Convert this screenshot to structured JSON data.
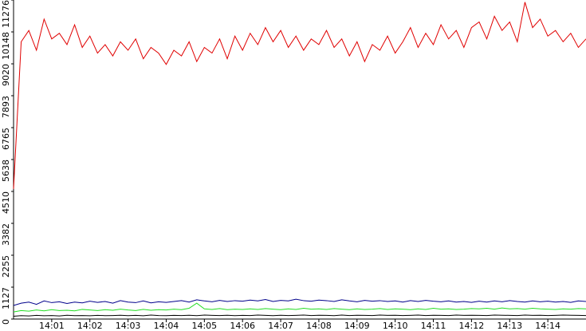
{
  "chart_data": {
    "type": "line",
    "x": [
      0,
      0.2,
      0.4,
      0.6,
      0.8,
      1,
      1.2,
      1.4,
      1.6,
      1.8,
      2,
      2.2,
      2.4,
      2.6,
      2.8,
      3,
      3.2,
      3.4,
      3.6,
      3.8,
      4,
      4.2,
      4.4,
      4.6,
      4.8,
      5,
      5.2,
      5.4,
      5.6,
      5.8,
      6,
      6.2,
      6.4,
      6.6,
      6.8,
      7,
      7.2,
      7.4,
      7.6,
      7.8,
      8,
      8.2,
      8.4,
      8.6,
      8.8,
      9,
      9.2,
      9.4,
      9.6,
      9.8,
      10,
      10.2,
      10.4,
      10.6,
      10.8,
      11,
      11.2,
      11.4,
      11.6,
      11.8,
      12,
      12.2,
      12.4,
      12.6,
      12.8,
      13,
      13.2,
      13.4,
      13.6,
      13.8,
      14,
      14.2,
      14.4,
      14.6,
      14.8,
      15
    ],
    "series": [
      {
        "color": "#e00000",
        "values": [
          4600,
          9800,
          10200,
          9500,
          10600,
          9900,
          10100,
          9700,
          10400,
          9600,
          10000,
          9400,
          9700,
          9300,
          9800,
          9500,
          9900,
          9200,
          9600,
          9400,
          9000,
          9500,
          9300,
          9800,
          9100,
          9600,
          9400,
          9900,
          9200,
          10000,
          9500,
          10100,
          9700,
          10300,
          9800,
          10200,
          9600,
          10000,
          9500,
          9900,
          9700,
          10200,
          9600,
          9900,
          9300,
          9800,
          9100,
          9700,
          9500,
          10000,
          9400,
          9800,
          10300,
          9600,
          10100,
          9700,
          10400,
          9900,
          10200,
          9600,
          10300,
          10500,
          9900,
          10700,
          10200,
          10500,
          9800,
          11200,
          10300,
          10600,
          10000,
          10200,
          9800,
          10100,
          9600,
          9900
        ]
      },
      {
        "color": "#00008b",
        "values": [
          480,
          560,
          600,
          520,
          640,
          580,
          610,
          550,
          600,
          570,
          630,
          590,
          620,
          560,
          650,
          600,
          580,
          640,
          570,
          610,
          590,
          620,
          650,
          600,
          680,
          640,
          610,
          660,
          620,
          650,
          630,
          670,
          640,
          690,
          620,
          660,
          640,
          700,
          650,
          630,
          670,
          650,
          620,
          680,
          640,
          610,
          660,
          630,
          650,
          620,
          640,
          600,
          650,
          620,
          660,
          630,
          610,
          640,
          600,
          620,
          590,
          630,
          600,
          640,
          610,
          650,
          620,
          600,
          640,
          610,
          630,
          600,
          620,
          590,
          640,
          620
        ]
      },
      {
        "color": "#22dd22",
        "values": [
          250,
          300,
          280,
          320,
          290,
          330,
          300,
          310,
          290,
          340,
          320,
          300,
          330,
          310,
          350,
          320,
          300,
          340,
          310,
          330,
          320,
          350,
          330,
          380,
          560,
          360,
          340,
          370,
          330,
          350,
          340,
          360,
          340,
          370,
          350,
          330,
          360,
          340,
          380,
          350,
          360,
          340,
          370,
          350,
          330,
          360,
          340,
          350,
          370,
          340,
          360,
          350,
          330,
          360,
          340,
          380,
          350,
          360,
          340,
          350,
          370,
          360,
          380,
          350,
          390,
          360,
          370,
          350,
          380,
          360,
          350,
          340,
          360,
          350,
          370,
          360
        ]
      },
      {
        "color": "#000000",
        "values": [
          100,
          120,
          110,
          130,
          115,
          125,
          110,
          135,
          120,
          125,
          115,
          130,
          120,
          125,
          135,
          120,
          130,
          115,
          140,
          125,
          120,
          130,
          125,
          135,
          120,
          140,
          130,
          125,
          135,
          120,
          130,
          125,
          140,
          130,
          120,
          135,
          125,
          130,
          140,
          125,
          135,
          130,
          120,
          140,
          125,
          135,
          130,
          125,
          140,
          130,
          135,
          125,
          130,
          140,
          125,
          135,
          130,
          125,
          140,
          130,
          135,
          130,
          125,
          140,
          135,
          130,
          125,
          140,
          130,
          135,
          125,
          130,
          140,
          135,
          130,
          125
        ]
      }
    ],
    "xlim": [
      0,
      15
    ],
    "xticks": [
      {
        "value": 1,
        "label": "14:01"
      },
      {
        "value": 2,
        "label": "14:02"
      },
      {
        "value": 3,
        "label": "14:03"
      },
      {
        "value": 4,
        "label": "14:04"
      },
      {
        "value": 5,
        "label": "14:05"
      },
      {
        "value": 6,
        "label": "14:06"
      },
      {
        "value": 7,
        "label": "14:07"
      },
      {
        "value": 8,
        "label": "14:08"
      },
      {
        "value": 9,
        "label": "14:09"
      },
      {
        "value": 10,
        "label": "14:10"
      },
      {
        "value": 11,
        "label": "14:11"
      },
      {
        "value": 12,
        "label": "14:12"
      },
      {
        "value": 13,
        "label": "14:13"
      },
      {
        "value": 14,
        "label": "14:14"
      }
    ],
    "ylim": [
      0,
      11276
    ],
    "yticks": [
      0,
      1127,
      2255,
      3382,
      4510,
      5638,
      6765,
      7893,
      9020,
      10148,
      11276
    ]
  }
}
